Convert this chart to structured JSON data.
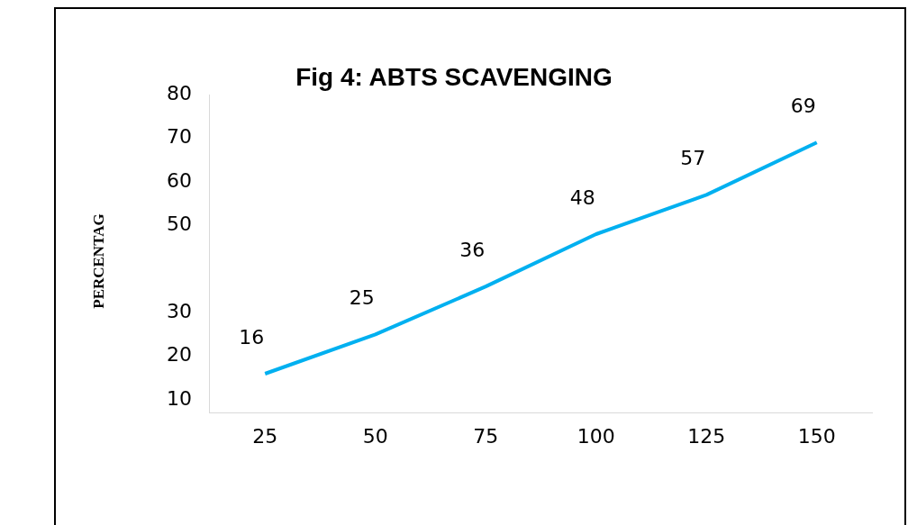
{
  "chart_data": {
    "type": "line",
    "title": "Fig 4: ABTS SCAVENGING",
    "ylabel": "PERCENTAG",
    "categories": [
      "25",
      "50",
      "75",
      "100",
      "125",
      "150"
    ],
    "series": [
      {
        "color": "#00b0f0",
        "values": [
          16,
          25,
          36,
          48,
          57,
          69
        ]
      }
    ],
    "ylim": [
      7,
      80
    ],
    "yticks": [
      10,
      20,
      30,
      50,
      60,
      70,
      80
    ],
    "data_labels": true,
    "grid": false,
    "legend": false,
    "marker": "none",
    "line_style": "solid"
  }
}
